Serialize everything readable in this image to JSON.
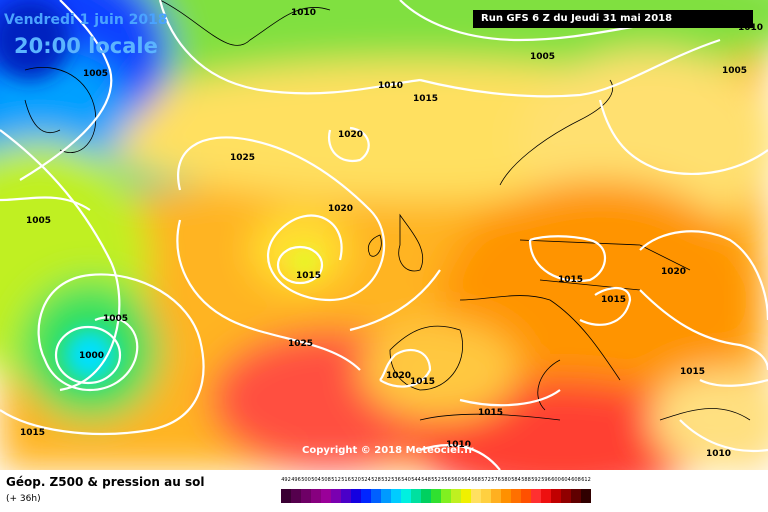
{
  "header": {
    "date": "Vendredi 1 juin 2018",
    "time": "20:00 locale",
    "run": "Run GFS 6 Z du Jeudi 31 mai 2018"
  },
  "copyright": "Copyright © 2018 Meteociel.fr",
  "footer": {
    "title": "Géop. Z500 & pression au sol",
    "subtitle": "(+ 36h)"
  },
  "isobar_labels": [
    "1010",
    "1005",
    "1010",
    "1015",
    "1005",
    "1005",
    "1020",
    "1025",
    "1005",
    "1020",
    "1015",
    "1005",
    "1000",
    "1025",
    "1020",
    "1015",
    "1015",
    "1015",
    "1020",
    "1015",
    "1015",
    "1010",
    "1010",
    "1015",
    "1010"
  ],
  "scale": {
    "labels": [
      "492",
      "496",
      "500",
      "504",
      "508",
      "512",
      "516",
      "520",
      "524",
      "528",
      "532",
      "536",
      "540",
      "544",
      "548",
      "552",
      "556",
      "560",
      "564",
      "568",
      "572",
      "576",
      "580",
      "584",
      "588",
      "592",
      "596",
      "600",
      "604",
      "608",
      "612"
    ],
    "colors": [
      "#3a0033",
      "#55004d",
      "#6e0066",
      "#87007f",
      "#9a0099",
      "#7a00b0",
      "#4a00c8",
      "#1400e0",
      "#0026ff",
      "#0060ff",
      "#009aff",
      "#00ccff",
      "#00f0e0",
      "#00e0a0",
      "#00d060",
      "#30e030",
      "#80f020",
      "#c0f020",
      "#f0f000",
      "#ffe060",
      "#ffd040",
      "#ffb020",
      "#ff9000",
      "#ff7000",
      "#ff5000",
      "#ff3030",
      "#ee1010",
      "#c00000",
      "#900000",
      "#600000",
      "#300000"
    ]
  }
}
